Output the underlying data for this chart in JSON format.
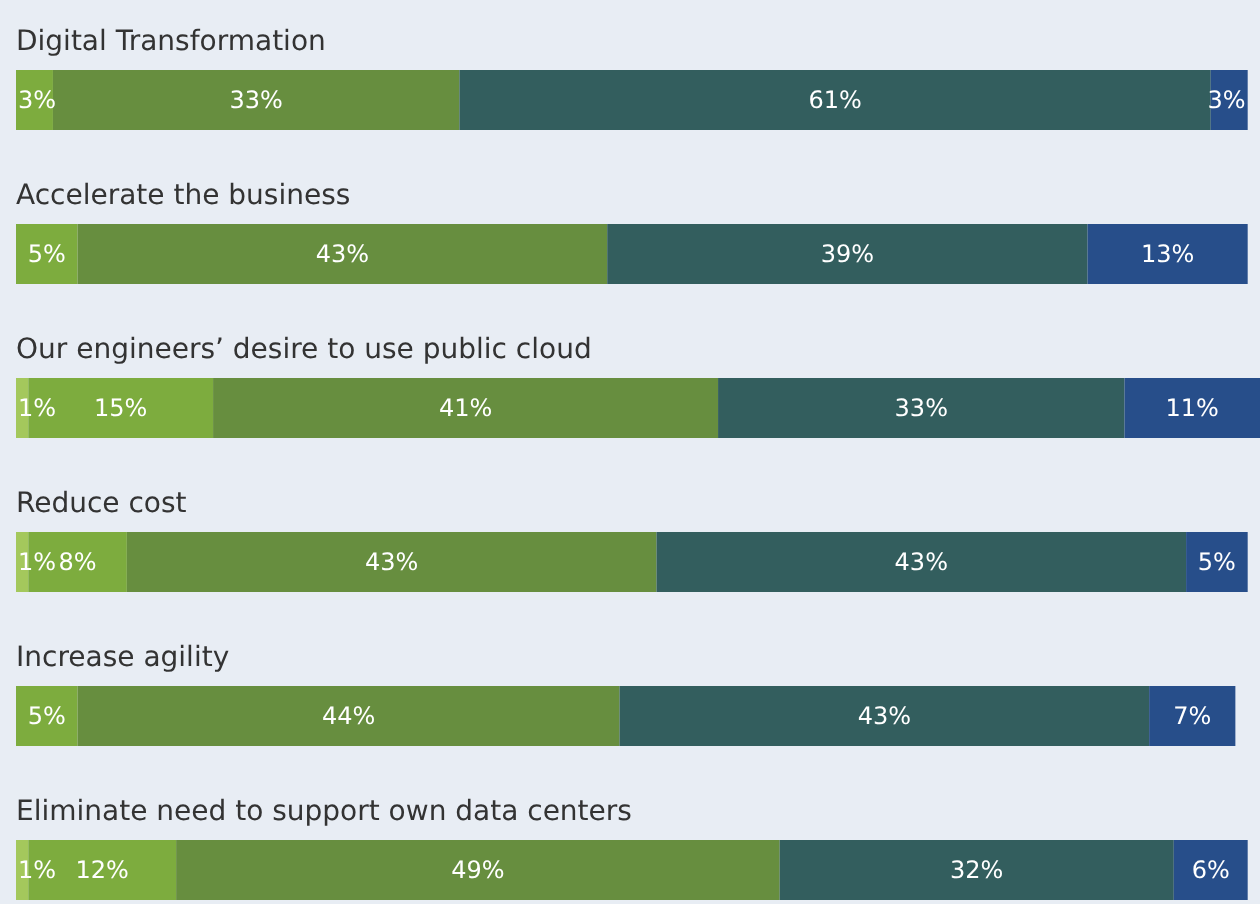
{
  "chart_data": {
    "type": "bar",
    "orientation": "horizontal",
    "stacked": true,
    "categories": [
      "Digital Transformation",
      "Accelerate the business",
      "Our engineers’ desire to use public cloud",
      "Reduce cost",
      "Increase agility",
      "Eliminate need to support own data centers"
    ],
    "series": [
      {
        "color": "#a4c85c",
        "values": [
          null,
          null,
          1,
          1,
          null,
          1
        ],
        "value_labels": [
          null,
          null,
          "1%",
          "1%",
          null,
          "1%"
        ]
      },
      {
        "color": "#7dac3e",
        "values": [
          3,
          5,
          15,
          8,
          5,
          12
        ],
        "value_labels": [
          "3%",
          "5%",
          "15%",
          "8%",
          "5%",
          "12%"
        ]
      },
      {
        "color": "#678e3f",
        "values": [
          33,
          43,
          41,
          43,
          44,
          49
        ],
        "value_labels": [
          "33%",
          "43%",
          "41%",
          "43%",
          "44%",
          "49%"
        ]
      },
      {
        "color": "#335e5e",
        "values": [
          61,
          39,
          33,
          43,
          43,
          32
        ],
        "value_labels": [
          "61%",
          "39%",
          "33%",
          "43%",
          "43%",
          "32%"
        ]
      },
      {
        "color": "#274e8a",
        "values": [
          3,
          13,
          11,
          5,
          7,
          6
        ],
        "value_labels": [
          "3%",
          "13%",
          "11%",
          "5%",
          "7%",
          "6%"
        ]
      }
    ]
  }
}
